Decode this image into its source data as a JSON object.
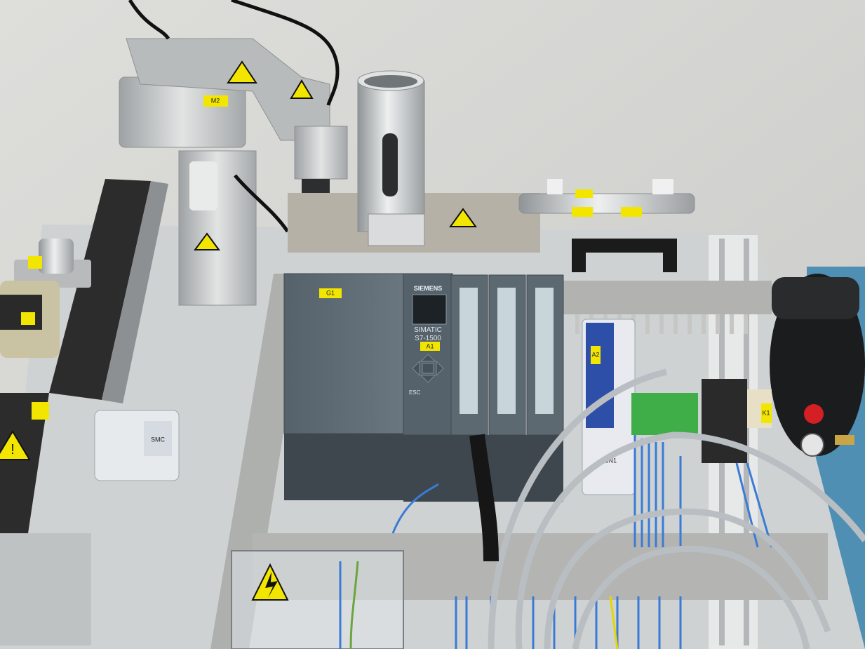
{
  "plc": {
    "brand": "SIEMENS",
    "model_line1": "SIMATIC",
    "model_line2": "S7-1500",
    "esc_key": "ESC"
  },
  "labels": {
    "g1": "G1",
    "a1": "A1",
    "a2": "A2",
    "m2": "M2",
    "k1": "K1",
    "cn1": "CN1"
  },
  "valve_brand": "SMC",
  "colors": {
    "wall": "#d9d9d6",
    "plc_body": "#5e6a73",
    "label_yellow": "#f2e600",
    "cable_blue": "#3a7bd5",
    "cable_grey": "#b9bec2"
  }
}
